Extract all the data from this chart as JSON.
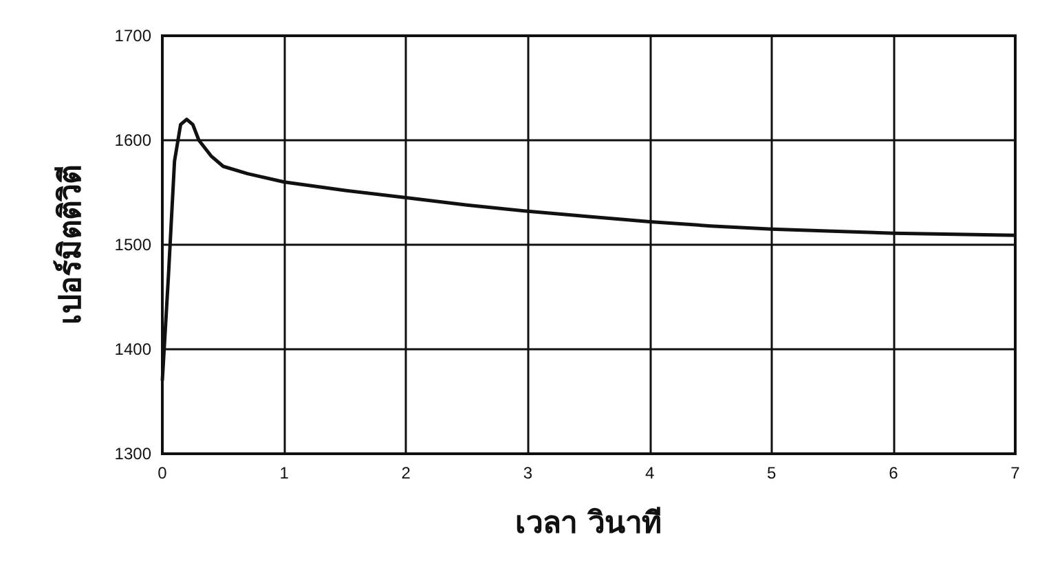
{
  "chart_data": {
    "type": "line",
    "xlabel": "เวลา วินาที",
    "ylabel": "เปอร์มิตติวิตี",
    "x": [
      0,
      0.05,
      0.1,
      0.15,
      0.2,
      0.25,
      0.3,
      0.4,
      0.5,
      0.7,
      1,
      1.5,
      2,
      2.5,
      3,
      3.5,
      4,
      4.5,
      5,
      5.5,
      6,
      6.5,
      7
    ],
    "series": [
      {
        "color": "#111111",
        "values": [
          1370,
          1470,
          1580,
          1615,
          1620,
          1615,
          1600,
          1585,
          1575,
          1568,
          1560,
          1552,
          1545,
          1538,
          1532,
          1527,
          1522,
          1518,
          1515,
          1513,
          1511,
          1510,
          1509
        ]
      }
    ],
    "xlim": [
      0,
      7
    ],
    "xticks": [
      0,
      1,
      2,
      3,
      4,
      5,
      6,
      7
    ],
    "ylim": [
      1300,
      1700
    ],
    "yticks": [
      1300,
      1400,
      1500,
      1600,
      1700
    ],
    "grid": true,
    "marker": "none",
    "line_style": "solid"
  }
}
